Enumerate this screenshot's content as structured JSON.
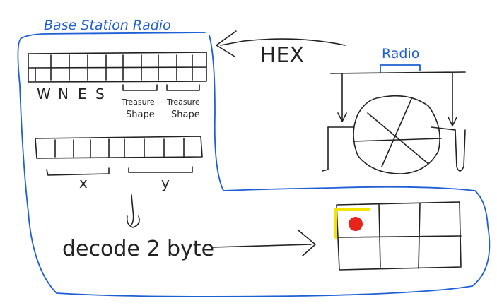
{
  "title": "Base Station Radio",
  "radio_label": "Radio",
  "arrow_label": "HEX",
  "direction_labels": [
    "W",
    "N",
    "E",
    "S"
  ],
  "treasure_shape_label_1_line1": "Treasure",
  "treasure_shape_label_1_line2": "Shape",
  "treasure_shape_label_2_line1": "Treasure",
  "treasure_shape_label_2_line2": "Shape",
  "x_label": "x",
  "y_label": "y",
  "decode_text": "decode 2 byte",
  "colors": {
    "border": "#1f5fd6",
    "ink": "#222222",
    "marker_red": "#e8231a",
    "highlight_yellow": "#f5e400"
  }
}
